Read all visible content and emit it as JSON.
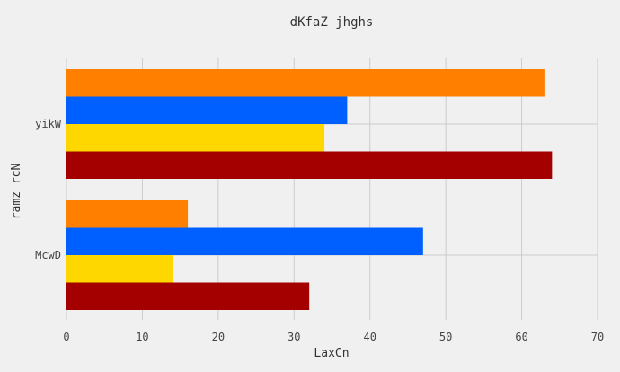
{
  "chart_data": {
    "type": "bar",
    "orientation": "horizontal",
    "title": "dKfaZ jhghs",
    "xlabel": "LaxCn",
    "ylabel": "ramz rcN",
    "categories": [
      "McwD",
      "yikW"
    ],
    "xlim": [
      0,
      70
    ],
    "xticks": [
      0,
      10,
      20,
      30,
      40,
      50,
      60,
      70
    ],
    "grid": true,
    "legend": "none",
    "series": [
      {
        "color": "#a50000",
        "values": [
          32,
          64
        ]
      },
      {
        "color": "#ffd700",
        "values": [
          14,
          34
        ]
      },
      {
        "color": "#0060ff",
        "values": [
          47,
          37
        ]
      },
      {
        "color": "#ff7f00",
        "values": [
          16,
          63
        ]
      }
    ],
    "background": "#f0f0f0"
  }
}
